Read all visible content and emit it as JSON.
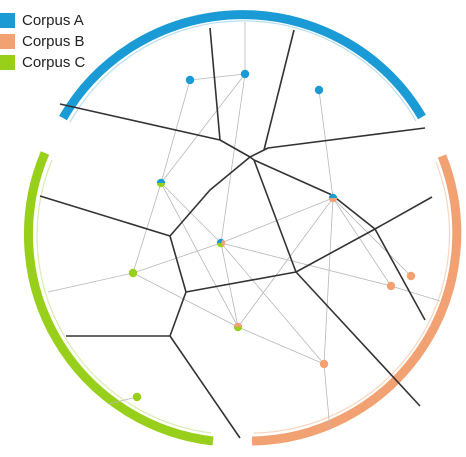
{
  "legend": {
    "items": [
      {
        "label": "Corpus A",
        "color": "#1a9bd6"
      },
      {
        "label": "Corpus B",
        "color": "#f2a272"
      },
      {
        "label": "Corpus C",
        "color": "#98cf1a"
      }
    ]
  },
  "colors": {
    "corpus_a": "#1a9bd6",
    "corpus_b": "#f2a272",
    "corpus_c": "#98cf1a",
    "cell_edge": "#333333",
    "link": "#b8b8b8"
  }
}
